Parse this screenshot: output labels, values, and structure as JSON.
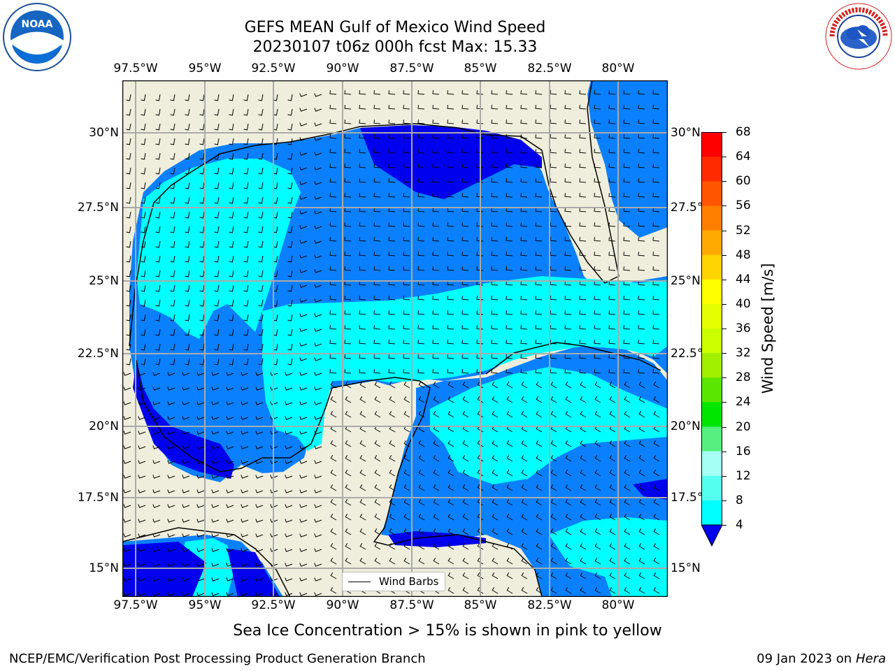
{
  "title_line1": "GEFS MEAN Gulf of Mexico Wind Speed",
  "title_line2": "20230107 t06z 000h fcst   Max: 15.33",
  "lon_ticks": [
    "97.5°W",
    "95°W",
    "92.5°W",
    "90°W",
    "87.5°W",
    "85°W",
    "82.5°W",
    "80°W"
  ],
  "lat_ticks": [
    "30°N",
    "27.5°N",
    "25°N",
    "22.5°N",
    "20°N",
    "17.5°N",
    "15°N"
  ],
  "colorbar": {
    "label": "Wind Speed [m/s]",
    "ticks": [
      "68",
      "64",
      "60",
      "56",
      "52",
      "48",
      "44",
      "40",
      "36",
      "32",
      "28",
      "24",
      "20",
      "16",
      "12",
      "8",
      "4"
    ],
    "colors": [
      "#ff0000",
      "#ff2a00",
      "#ff5500",
      "#ff7f00",
      "#ffaa00",
      "#ffd400",
      "#ffff00",
      "#e6ff00",
      "#ccff00",
      "#a0f000",
      "#5ae600",
      "#00e600",
      "#55f07f",
      "#a6fff4",
      "#55fff0",
      "#00ffff",
      "#0080ff"
    ],
    "under_color": "#0000ee"
  },
  "legend_label": "Wind Barbs",
  "subtitle": "Sea Ice Concentration > 15% is shown in pink to yellow",
  "footer_left": "NCEP/EMC/Verification Post Processing Product Generation Branch",
  "footer_right_date": "09 Jan 2023 on",
  "footer_right_host": "Hera",
  "logos": {
    "left": "NOAA",
    "right_ring_text": "NATIONAL WEATHER SERVICE"
  },
  "map_colors": {
    "land": "#efeedc",
    "band_4_8": "#0a80ff",
    "band_8_12": "#00ffff",
    "band_12_16": "#4ffff0",
    "below_4": "#0000ee"
  }
}
